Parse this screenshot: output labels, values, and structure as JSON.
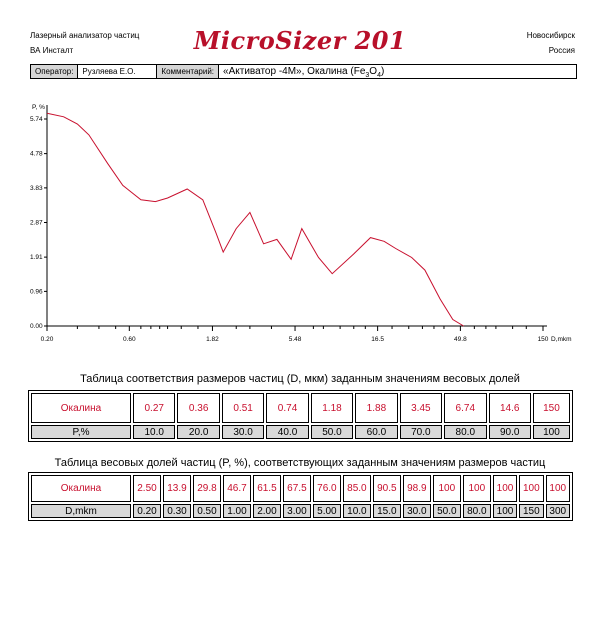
{
  "header": {
    "org_line1": "Лазерный анализатор частиц",
    "org_line2": "ВА Инсталт",
    "logo_text": "MicroSizer 201",
    "city": "Новосибирск",
    "country": "Россия"
  },
  "info": {
    "operator_label": "Оператор:",
    "operator_value": "Рузляева Е.О.",
    "comment_label": "Комментарий:",
    "comment_value": "«Активатор -4М»,   Окалина (Fe3O4)"
  },
  "chart_data": {
    "type": "line",
    "ylabel": "P, %",
    "xlabel": "D,mkm",
    "y_ticks": [
      "5.74",
      "4.78",
      "3.83",
      "2.87",
      "1.91",
      "0.96",
      "0.00"
    ],
    "x_ticks": [
      "0.20",
      "0.60",
      "1.82",
      "5.48",
      "16.5",
      "49.8",
      "150"
    ],
    "x_scale": "log",
    "xlim": [
      0.2,
      150
    ],
    "ylim": [
      0,
      5.74
    ],
    "series": [
      {
        "color": "#c8102e",
        "x": [
          0.2,
          0.25,
          0.3,
          0.35,
          0.45,
          0.55,
          0.7,
          0.85,
          1.0,
          1.3,
          1.6,
          1.9,
          2.1,
          2.5,
          3.0,
          3.6,
          4.3,
          5.2,
          6.0,
          7.5,
          9.0,
          12.0,
          15.0,
          18.0,
          21.0,
          26.0,
          31.0,
          38.0,
          45.0,
          52.0
        ],
        "y": [
          5.9,
          5.8,
          5.6,
          5.3,
          4.5,
          3.9,
          3.5,
          3.45,
          3.55,
          3.8,
          3.5,
          2.6,
          2.05,
          2.7,
          3.15,
          2.28,
          2.4,
          1.85,
          2.7,
          1.9,
          1.45,
          2.0,
          2.45,
          2.35,
          2.15,
          1.9,
          1.55,
          0.75,
          0.18,
          0.0
        ]
      }
    ]
  },
  "table1": {
    "title": "Таблица соответствия размеров частиц (D, мкм) заданным значениям весовых долей",
    "row1_label": "Окалина",
    "row1_values": [
      "0.27",
      "0.36",
      "0.51",
      "0.74",
      "1.18",
      "1.88",
      "3.45",
      "6.74",
      "14.6",
      "150"
    ],
    "row2_label": "P,%",
    "row2_values": [
      "10.0",
      "20.0",
      "30.0",
      "40.0",
      "50.0",
      "60.0",
      "70.0",
      "80.0",
      "90.0",
      "100"
    ]
  },
  "table2": {
    "title": "Таблица весовых долей частиц (P, %), соответствующих заданным значениям размеров частиц",
    "row1_label": "Окалина",
    "row1_values": [
      "2.50",
      "13.9",
      "29.8",
      "46.7",
      "61.5",
      "67.5",
      "76.0",
      "85.0",
      "90.5",
      "98.9",
      "100",
      "100",
      "100",
      "100",
      "100"
    ],
    "row2_label": "D,mkm",
    "row2_values": [
      "0.20",
      "0.30",
      "0.50",
      "1.00",
      "2.00",
      "3.00",
      "5.00",
      "10.0",
      "15.0",
      "30.0",
      "50.0",
      "80.0",
      "100",
      "150",
      "300"
    ]
  }
}
